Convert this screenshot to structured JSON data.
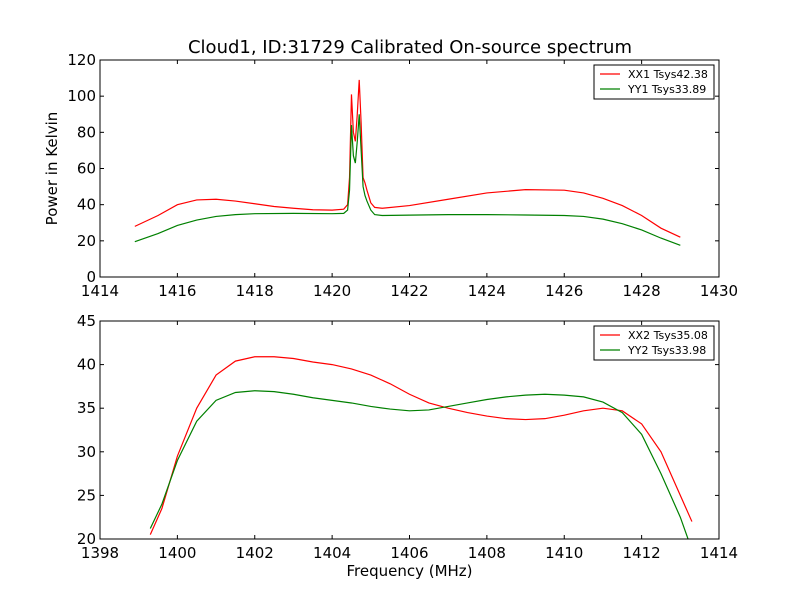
{
  "figure": {
    "title": "Cloud1, ID:31729 Calibrated On-source spectrum"
  },
  "colors": {
    "series1": "#ff0000",
    "series2": "#008000",
    "axes": "#000000",
    "background": "#ffffff"
  },
  "chart_data": [
    {
      "type": "line",
      "title": "Cloud1, ID:31729 Calibrated On-source spectrum",
      "xlabel": "",
      "ylabel": "Power in Kelvin",
      "xlim": [
        1414,
        1430
      ],
      "ylim": [
        0,
        120
      ],
      "xticks": [
        1414,
        1416,
        1418,
        1420,
        1422,
        1424,
        1426,
        1428,
        1430
      ],
      "yticks": [
        0,
        20,
        40,
        60,
        80,
        100,
        120
      ],
      "grid": false,
      "legend": "top-right",
      "series": [
        {
          "name": "XX1 Tsys42.38",
          "color": "#ff0000",
          "points": [
            [
              1414.9,
              28.0
            ],
            [
              1415.5,
              34.0
            ],
            [
              1416.0,
              40.0
            ],
            [
              1416.5,
              42.6
            ],
            [
              1417.0,
              43.0
            ],
            [
              1417.5,
              42.0
            ],
            [
              1418.0,
              40.5
            ],
            [
              1418.5,
              39.0
            ],
            [
              1419.0,
              38.0
            ],
            [
              1419.5,
              37.2
            ],
            [
              1420.0,
              37.0
            ],
            [
              1420.3,
              37.5
            ],
            [
              1420.4,
              40.0
            ],
            [
              1420.45,
              55.0
            ],
            [
              1420.5,
              101.0
            ],
            [
              1420.55,
              80.0
            ],
            [
              1420.6,
              75.0
            ],
            [
              1420.65,
              90.0
            ],
            [
              1420.7,
              109.0
            ],
            [
              1420.75,
              85.0
            ],
            [
              1420.8,
              55.0
            ],
            [
              1420.85,
              52.0
            ],
            [
              1420.9,
              48.0
            ],
            [
              1421.0,
              41.0
            ],
            [
              1421.1,
              38.5
            ],
            [
              1421.3,
              38.0
            ],
            [
              1422.0,
              39.5
            ],
            [
              1423.0,
              43.0
            ],
            [
              1424.0,
              46.5
            ],
            [
              1425.0,
              48.3
            ],
            [
              1426.0,
              48.0
            ],
            [
              1426.5,
              46.5
            ],
            [
              1427.0,
              43.5
            ],
            [
              1427.5,
              39.5
            ],
            [
              1428.0,
              34.0
            ],
            [
              1428.5,
              27.0
            ],
            [
              1429.0,
              22.0
            ]
          ]
        },
        {
          "name": "YY1 Tsys33.89",
          "color": "#008000",
          "points": [
            [
              1414.9,
              19.5
            ],
            [
              1415.5,
              24.0
            ],
            [
              1416.0,
              28.5
            ],
            [
              1416.5,
              31.5
            ],
            [
              1417.0,
              33.5
            ],
            [
              1417.5,
              34.5
            ],
            [
              1418.0,
              35.0
            ],
            [
              1419.0,
              35.2
            ],
            [
              1420.0,
              35.0
            ],
            [
              1420.3,
              35.2
            ],
            [
              1420.4,
              37.0
            ],
            [
              1420.45,
              48.0
            ],
            [
              1420.5,
              84.0
            ],
            [
              1420.55,
              67.0
            ],
            [
              1420.6,
              63.0
            ],
            [
              1420.65,
              75.0
            ],
            [
              1420.7,
              90.0
            ],
            [
              1420.75,
              70.0
            ],
            [
              1420.8,
              50.0
            ],
            [
              1420.85,
              45.0
            ],
            [
              1420.9,
              42.0
            ],
            [
              1421.0,
              37.0
            ],
            [
              1421.1,
              34.5
            ],
            [
              1421.3,
              34.0
            ],
            [
              1422.0,
              34.2
            ],
            [
              1423.0,
              34.5
            ],
            [
              1424.0,
              34.5
            ],
            [
              1425.0,
              34.3
            ],
            [
              1426.0,
              34.0
            ],
            [
              1426.5,
              33.5
            ],
            [
              1427.0,
              32.0
            ],
            [
              1427.5,
              29.5
            ],
            [
              1428.0,
              26.0
            ],
            [
              1428.5,
              21.5
            ],
            [
              1429.0,
              17.5
            ]
          ]
        }
      ]
    },
    {
      "type": "line",
      "title": "",
      "xlabel": "Frequency (MHz)",
      "ylabel": "",
      "xlim": [
        1398,
        1414
      ],
      "ylim": [
        20,
        45
      ],
      "xticks": [
        1398,
        1400,
        1402,
        1404,
        1406,
        1408,
        1410,
        1412,
        1414
      ],
      "yticks": [
        20,
        25,
        30,
        35,
        40,
        45
      ],
      "grid": false,
      "legend": "top-right",
      "series": [
        {
          "name": "XX2 Tsys35.08",
          "color": "#ff0000",
          "points": [
            [
              1399.3,
              20.5
            ],
            [
              1399.6,
              23.5
            ],
            [
              1400.0,
              29.5
            ],
            [
              1400.5,
              35.0
            ],
            [
              1401.0,
              38.8
            ],
            [
              1401.5,
              40.4
            ],
            [
              1402.0,
              40.9
            ],
            [
              1402.5,
              40.9
            ],
            [
              1403.0,
              40.7
            ],
            [
              1403.5,
              40.3
            ],
            [
              1404.0,
              40.0
            ],
            [
              1404.5,
              39.5
            ],
            [
              1405.0,
              38.8
            ],
            [
              1405.5,
              37.8
            ],
            [
              1406.0,
              36.6
            ],
            [
              1406.5,
              35.6
            ],
            [
              1407.0,
              35.0
            ],
            [
              1407.5,
              34.5
            ],
            [
              1408.0,
              34.1
            ],
            [
              1408.5,
              33.8
            ],
            [
              1409.0,
              33.7
            ],
            [
              1409.5,
              33.8
            ],
            [
              1410.0,
              34.2
            ],
            [
              1410.5,
              34.7
            ],
            [
              1411.0,
              35.0
            ],
            [
              1411.5,
              34.7
            ],
            [
              1412.0,
              33.2
            ],
            [
              1412.5,
              30.0
            ],
            [
              1413.0,
              25.0
            ],
            [
              1413.3,
              22.0
            ]
          ]
        },
        {
          "name": "YY2 Tsys33.98",
          "color": "#008000",
          "points": [
            [
              1399.3,
              21.2
            ],
            [
              1399.6,
              24.0
            ],
            [
              1400.0,
              29.0
            ],
            [
              1400.5,
              33.5
            ],
            [
              1401.0,
              35.9
            ],
            [
              1401.5,
              36.8
            ],
            [
              1402.0,
              37.0
            ],
            [
              1402.5,
              36.9
            ],
            [
              1403.0,
              36.6
            ],
            [
              1403.5,
              36.2
            ],
            [
              1404.0,
              35.9
            ],
            [
              1404.5,
              35.6
            ],
            [
              1405.0,
              35.2
            ],
            [
              1405.5,
              34.9
            ],
            [
              1406.0,
              34.7
            ],
            [
              1406.5,
              34.8
            ],
            [
              1407.0,
              35.2
            ],
            [
              1407.5,
              35.6
            ],
            [
              1408.0,
              36.0
            ],
            [
              1408.5,
              36.3
            ],
            [
              1409.0,
              36.5
            ],
            [
              1409.5,
              36.6
            ],
            [
              1410.0,
              36.5
            ],
            [
              1410.5,
              36.3
            ],
            [
              1411.0,
              35.7
            ],
            [
              1411.5,
              34.5
            ],
            [
              1412.0,
              32.0
            ],
            [
              1412.5,
              27.5
            ],
            [
              1413.0,
              22.5
            ],
            [
              1413.2,
              20.0
            ]
          ]
        }
      ]
    }
  ]
}
